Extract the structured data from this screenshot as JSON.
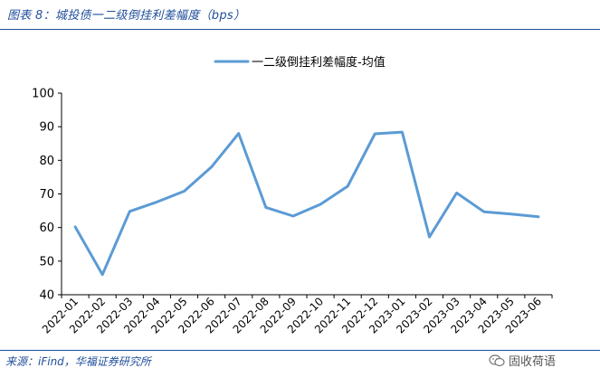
{
  "figure": {
    "title": "图表 8：城投债一二级倒挂利差幅度（bps）",
    "source": "来源：iFind，华福证券研究所",
    "watermark": "固收荷语",
    "watermark_icon": "wechat-icon"
  },
  "colors": {
    "line": "#5b9bd5",
    "header": "#1f4e9a",
    "axis_text": "#000000"
  },
  "chart_data": {
    "type": "line",
    "title": "",
    "xlabel": "",
    "ylabel": "",
    "ylim": [
      40,
      100
    ],
    "yticks": [
      40,
      50,
      60,
      70,
      80,
      90,
      100
    ],
    "grid": false,
    "legend_position": "top-center",
    "categories": [
      "2022-01",
      "2022-02",
      "2022-03",
      "2022-04",
      "2022-05",
      "2022-06",
      "2022-07",
      "2022-08",
      "2022-09",
      "2022-10",
      "2022-11",
      "2022-12",
      "2023-01",
      "2023-02",
      "2023-03",
      "2023-04",
      "2023-05",
      "2023-06"
    ],
    "series": [
      {
        "name": "一二级倒挂利差幅度-均值",
        "values": [
          60.2,
          46,
          64.8,
          67.6,
          70.8,
          78,
          88,
          66,
          63.4,
          66.9,
          72.3,
          87.9,
          88.4,
          57.2,
          70.3,
          64.7,
          64,
          63.2
        ]
      }
    ]
  }
}
